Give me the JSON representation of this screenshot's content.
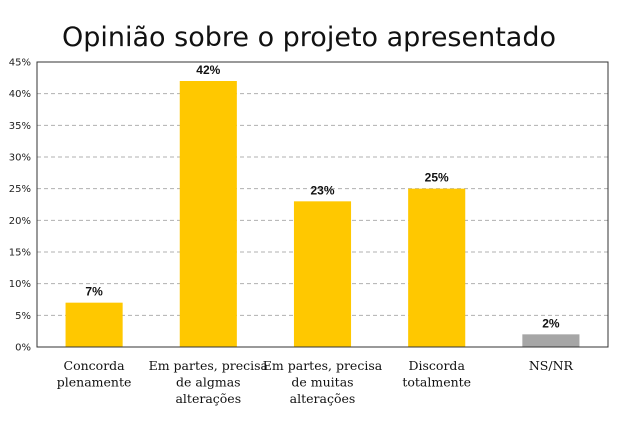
{
  "chart_data": {
    "type": "bar",
    "title": "Opinião sobre o projeto apresentado",
    "categories": [
      [
        "Concorda",
        "plenamente"
      ],
      [
        "Em partes, precisa",
        "de algmas",
        "alterações"
      ],
      [
        "Em partes, precisa",
        "de muitas",
        "alterações"
      ],
      [
        "Discorda",
        "totalmente"
      ],
      [
        "NS/NR"
      ]
    ],
    "values": [
      7,
      42,
      23,
      25,
      2
    ],
    "data_labels": [
      "7%",
      "42%",
      "23%",
      "25%",
      "2%"
    ],
    "y_ticks": [
      "0%",
      "5%",
      "10%",
      "15%",
      "20%",
      "25%",
      "30%",
      "35%",
      "40%",
      "45%"
    ],
    "ylim": [
      0,
      45
    ],
    "grid": true,
    "colors": [
      "#FFC800",
      "#FFC800",
      "#FFC800",
      "#FFC800",
      "#A6A6A6"
    ]
  }
}
